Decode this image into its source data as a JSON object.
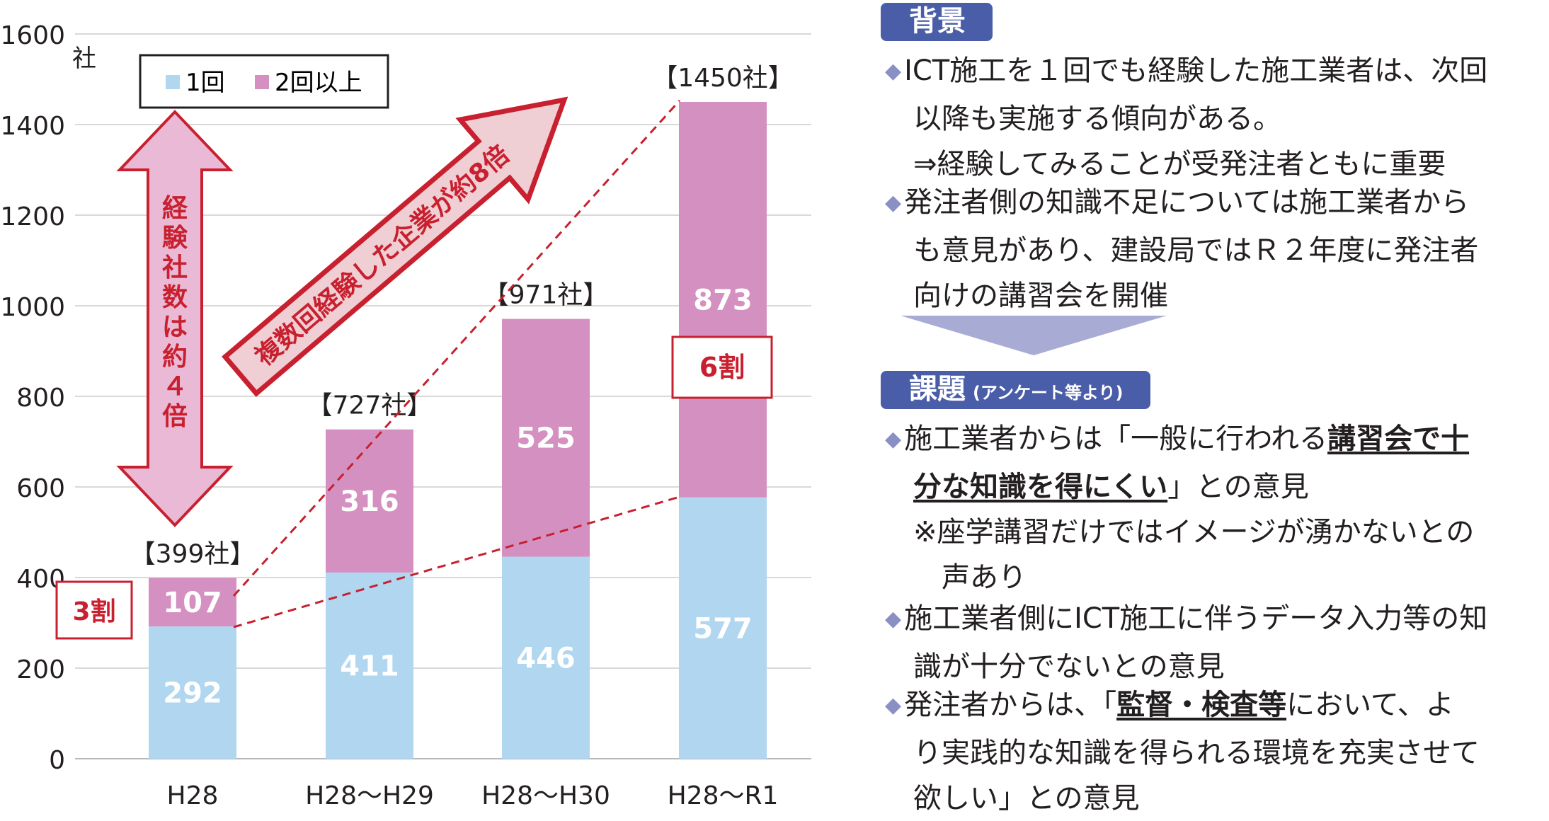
{
  "chart_data": {
    "type": "bar",
    "stacked": true,
    "categories": [
      "H28",
      "H28～H29",
      "H28～H30",
      "H28～R1"
    ],
    "series": [
      {
        "name": "1回",
        "values": [
          292,
          411,
          446,
          577
        ],
        "color": "#b0d6f0"
      },
      {
        "name": "2回以上",
        "values": [
          107,
          316,
          525,
          873
        ],
        "color": "#d490c0"
      }
    ],
    "totals": [
      "【399社】",
      "【727社】",
      "【971社】",
      "【1450社】"
    ],
    "y_ticks": [
      0,
      200,
      400,
      600,
      800,
      1000,
      1200,
      1400,
      1600
    ],
    "ylim": [
      0,
      1600
    ],
    "y_unit": "社",
    "grid": true,
    "legend_position": "top-left",
    "annotations": {
      "vertical_arrow": "経験社数は約４倍",
      "diagonal_arrow": "複数回経験した企業が約8倍",
      "share_h28": "3割",
      "share_r1": "6割"
    }
  },
  "panel": {
    "haikei_title": "背景",
    "haikei_b1_l1": "ICT施工を１回でも経験した施工業者は、次回",
    "haikei_b1_l2": "以降も実施する傾向がある。",
    "haikei_b1_l3": "⇒経験してみることが受発注者ともに重要",
    "haikei_b2_l1": "発注者側の知識不足については施工業者から",
    "haikei_b2_l2": "も意見があり、建設局ではＲ２年度に発注者",
    "haikei_b2_l3": "向けの講習会を開催",
    "kadai_title": "課題",
    "kadai_sub": "(アンケート等より)",
    "kadai_b1_pre": "施工業者からは「一般に行われる",
    "kadai_b1_em1": "講習会で十",
    "kadai_b1_em2": "分な知識を得にくい",
    "kadai_b1_post": "」との意見",
    "kadai_b1_note1": "※座学講習だけではイメージが湧かないとの",
    "kadai_b1_note2": "声あり",
    "kadai_b2_l1": "施工業者側にICT施工に伴うデータ入力等の知",
    "kadai_b2_l2": "識が十分でないとの意見",
    "kadai_b3_pre": "発注者からは、「",
    "kadai_b3_em": "監督・検査等",
    "kadai_b3_post": "において、よ",
    "kadai_b3_l2": "り実践的な知識を得られる環境を充実させて",
    "kadai_b3_l3": "欲しい」との意見",
    "bullet": "◆"
  },
  "colors": {
    "accent": "#4a5da8",
    "arrow_red": "#c8202f",
    "arrow_fill": "#f0cfd4",
    "pink_arrow": "#eab9d6"
  }
}
